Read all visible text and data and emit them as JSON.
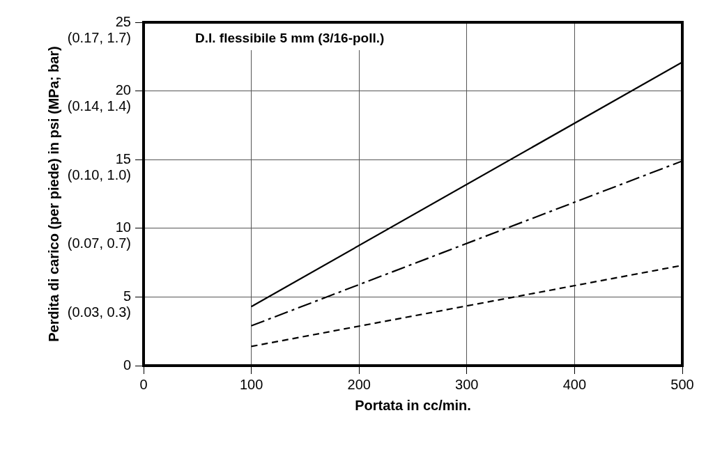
{
  "chart_data": {
    "type": "line",
    "title": "D.I. flessibile 5 mm (3/16-poll.)",
    "xlabel": "Portata in cc/min.",
    "ylabel": "Perdita di carico (per piede) in psi (MPa; bar)",
    "x": [
      100,
      500
    ],
    "series": [
      {
        "color": "#000000",
        "values": [
          4.3,
          22.1
        ],
        "line_style": "solid"
      },
      {
        "color": "#000000",
        "values": [
          2.9,
          14.9
        ],
        "line_style": "dashdot"
      },
      {
        "color": "#000000",
        "values": [
          1.4,
          7.3
        ],
        "line_style": "dashed"
      }
    ],
    "xlim": [
      0,
      500
    ],
    "xticks": [
      0,
      100,
      200,
      300,
      400,
      500
    ],
    "ylim": [
      0,
      25
    ],
    "yticks": [
      0,
      5,
      10,
      15,
      20,
      25
    ],
    "annotations": [
      "(0.03, 0.3)",
      "(0.07, 0.7)",
      "(0.10, 1.0)",
      "(0.14, 1.4)",
      "(0.17, 1.7)"
    ],
    "grid": true,
    "legend": false,
    "marker": "none"
  }
}
